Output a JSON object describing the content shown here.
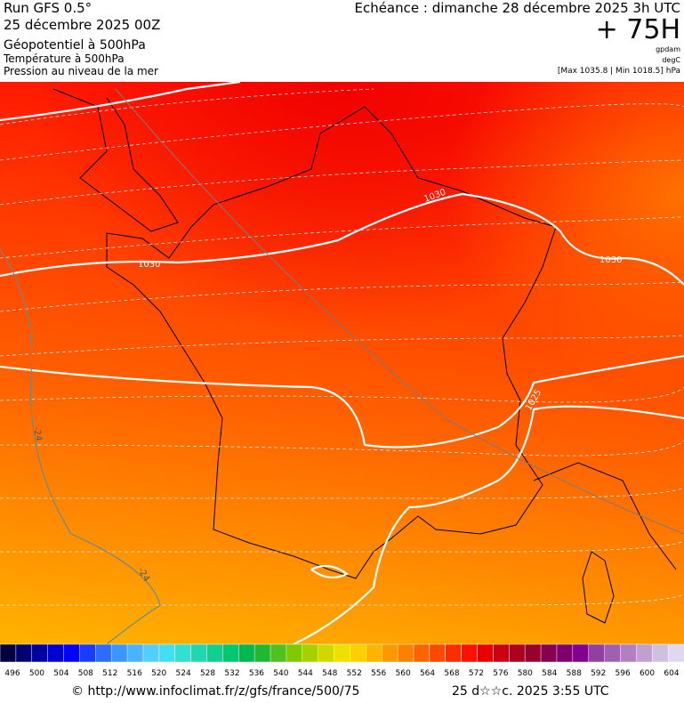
{
  "header": {
    "run": "Run GFS 0.5°",
    "date": "25 décembre 2025 00Z",
    "field1": "Géopotentiel à 500hPa",
    "field2": "Température à 500hPa",
    "field3": "Pression au niveau de la mer",
    "echeance": "Echéance : dimanche 28 décembre 2025 3h UTC",
    "lead": "+ 75H",
    "unit1": "gpdam",
    "unit2": "degC",
    "range": "[Max 1035.8 | Min 1018.5] hPa"
  },
  "map": {
    "contour_labels": [
      "1030",
      "1030",
      "1030",
      "1025",
      "-24",
      "-24"
    ]
  },
  "colorbar": {
    "labels": [
      496,
      500,
      504,
      508,
      512,
      516,
      520,
      524,
      528,
      532,
      536,
      540,
      544,
      548,
      552,
      556,
      560,
      564,
      568,
      572,
      576,
      580,
      584,
      588,
      592,
      596,
      600,
      604
    ],
    "colors": [
      "#000040",
      "#000070",
      "#0000a0",
      "#0000d0",
      "#0000ff",
      "#1a3cff",
      "#2d6cff",
      "#3c96ff",
      "#4bb4ff",
      "#50d0ff",
      "#40e0f0",
      "#30e0d0",
      "#20d8b0",
      "#10d090",
      "#00c870",
      "#00b850",
      "#20b830",
      "#50c020",
      "#80c800",
      "#a8d000",
      "#d0d800",
      "#f0e000",
      "#ffd000",
      "#ffb400",
      "#ff9800",
      "#ff8000",
      "#ff6400",
      "#ff4800",
      "#ff2c00",
      "#ff1000",
      "#e80000",
      "#cc0010",
      "#b00020",
      "#980030",
      "#880050",
      "#800070",
      "#800090",
      "#9040a0",
      "#a060b0",
      "#b080c0",
      "#c0a0d0",
      "#d0c0e0",
      "#e0d8f0"
    ]
  },
  "footer": {
    "url": "© http://www.infoclimat.fr/z/gfs/france/500/75",
    "timestamp": "25 d☆☆c. 2025  3:55 UTC"
  }
}
